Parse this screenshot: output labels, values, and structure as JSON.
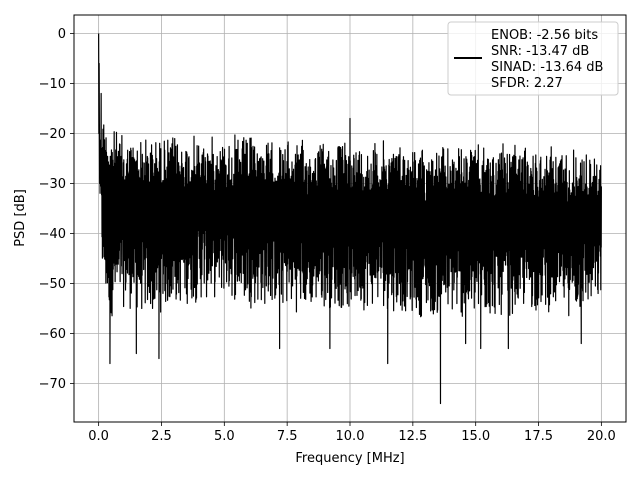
{
  "chart_data": {
    "type": "line",
    "xlabel": "Frequency [MHz]",
    "ylabel": "PSD [dB]",
    "xlim": [
      -0.98,
      20.98
    ],
    "ylim": [
      -77.7,
      3.7
    ],
    "xticks": [
      0.0,
      2.5,
      5.0,
      7.5,
      10.0,
      12.5,
      15.0,
      17.5,
      20.0
    ],
    "xtick_labels": [
      "0.0",
      "2.5",
      "5.0",
      "7.5",
      "10.0",
      "12.5",
      "15.0",
      "17.5",
      "20.0"
    ],
    "yticks": [
      0,
      -10,
      -20,
      -30,
      -40,
      -50,
      -60,
      -70
    ],
    "ytick_labels": [
      "0",
      "−10",
      "−20",
      "−30",
      "−40",
      "−50",
      "−60",
      "−70"
    ],
    "grid": true,
    "legend_position": "top-right",
    "series": [
      {
        "name": "ENOB: -2.56 bits\nSNR: -13.47 dB\nSINAD: -13.64 dB\nSFDR: 2.27",
        "color": "#000000",
        "x": [
          0.0,
          0.02,
          0.05,
          0.08,
          0.11,
          0.15,
          0.2,
          0.25,
          0.3,
          0.4,
          0.5,
          0.6,
          0.8,
          1.0,
          1.5,
          2.0,
          2.5,
          3.0,
          4.0,
          5.0,
          6.0,
          7.0,
          8.0,
          9.0,
          10.0,
          11.0,
          12.0,
          13.0,
          13.5,
          14.0,
          15.0,
          16.0,
          17.0,
          18.0,
          19.0,
          20.0
        ],
        "y": [
          0,
          -25,
          -13,
          -35,
          -15,
          -30,
          -18,
          -38,
          -20,
          -55,
          -22,
          -50,
          -25,
          -45,
          -23,
          -48,
          -65,
          -30,
          -40,
          -22,
          -50,
          -35,
          -45,
          -25,
          -17,
          -40,
          -55,
          -33,
          -73,
          -30,
          -45,
          -35,
          -50,
          -28,
          -40,
          -25
        ],
        "envelope": {
          "x": [
            0.05,
            0.15,
            0.3,
            0.5,
            1.0,
            2.0,
            3.0,
            4.0,
            5.0,
            6.0,
            7.0,
            8.0,
            9.0,
            10.0,
            11.0,
            12.0,
            13.0,
            14.0,
            15.0,
            16.0,
            17.0,
            18.0,
            19.0,
            20.0
          ],
          "upper": [
            -12,
            -14,
            -17,
            -18,
            -20,
            -20,
            -20,
            -20,
            -20,
            -20,
            -21,
            -21,
            -21,
            -21,
            -21,
            -21,
            -22,
            -22,
            -22,
            -22,
            -22,
            -22,
            -22,
            -24
          ],
          "lower": [
            -38,
            -50,
            -55,
            -57,
            -55,
            -57,
            -55,
            -54,
            -53,
            -55,
            -55,
            -56,
            -55,
            -56,
            -55,
            -56,
            -57,
            -57,
            -58,
            -57,
            -56,
            -56,
            -57,
            -55
          ]
        },
        "dips": [
          {
            "x": 0.45,
            "y": -66
          },
          {
            "x": 1.5,
            "y": -64
          },
          {
            "x": 2.4,
            "y": -65
          },
          {
            "x": 7.2,
            "y": -61
          },
          {
            "x": 7.2,
            "y": -63
          },
          {
            "x": 9.2,
            "y": -63
          },
          {
            "x": 11.5,
            "y": -66
          },
          {
            "x": 13.6,
            "y": -74
          },
          {
            "x": 14.6,
            "y": -62
          },
          {
            "x": 15.2,
            "y": -63
          },
          {
            "x": 16.3,
            "y": -63
          },
          {
            "x": 19.2,
            "y": -62
          }
        ],
        "peaks": [
          {
            "x": 10.0,
            "y": -17
          },
          {
            "x": 0.0,
            "y": 0
          },
          {
            "x": 0.1,
            "y": -12
          }
        ]
      }
    ]
  }
}
